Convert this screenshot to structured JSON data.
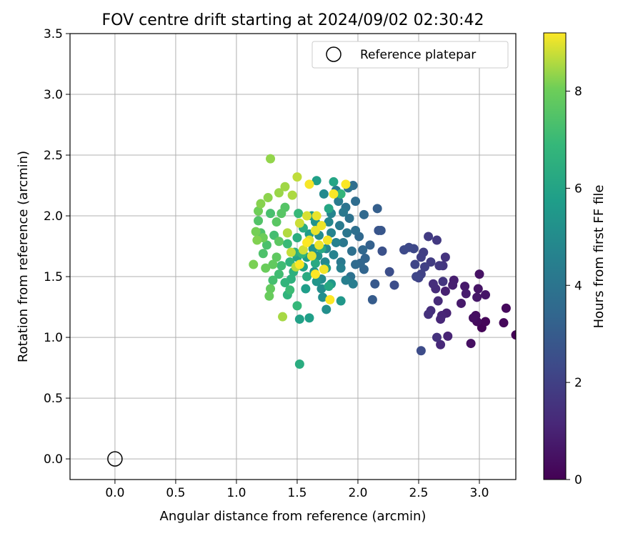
{
  "chart_data": {
    "type": "scatter",
    "title": "FOV centre drift starting at 2024/09/02 02:30:42",
    "xlabel": "Angular distance from reference (arcmin)",
    "ylabel": "Rotation from reference (arcmin)",
    "xlim": [
      -0.37,
      3.3
    ],
    "ylim": [
      -0.17,
      3.5
    ],
    "xticks": [
      0.0,
      0.5,
      1.0,
      1.5,
      2.0,
      2.5,
      3.0
    ],
    "xtick_labels": [
      "0.0",
      "0.5",
      "1.0",
      "1.5",
      "2.0",
      "2.5",
      "3.0"
    ],
    "yticks": [
      0.0,
      0.5,
      1.0,
      1.5,
      2.0,
      2.5,
      3.0,
      3.5
    ],
    "ytick_labels": [
      "0.0",
      "0.5",
      "1.0",
      "1.5",
      "2.0",
      "2.5",
      "3.0",
      "3.5"
    ],
    "grid": true,
    "legend": {
      "position": "upper-right",
      "entries": [
        {
          "label": "Reference platepar",
          "marker": "open-circle"
        }
      ]
    },
    "reference_point": {
      "x": 0.0,
      "y": 0.0
    },
    "colorbar": {
      "label": "Hours from first FF file",
      "colormap": "viridis",
      "range": [
        0,
        9.2
      ],
      "ticks": [
        0,
        2,
        4,
        6,
        8
      ],
      "tick_labels": [
        "0",
        "2",
        "4",
        "6",
        "8"
      ]
    },
    "series": [
      {
        "note_fields": [
          "x",
          "y",
          "hours"
        ],
        "points": [
          [
            3.3,
            1.02,
            0.05
          ],
          [
            3.02,
            1.08,
            0.1
          ],
          [
            3.05,
            1.13,
            0.15
          ],
          [
            3.2,
            1.12,
            0.2
          ],
          [
            3.22,
            1.24,
            0.25
          ],
          [
            2.98,
            1.13,
            0.3
          ],
          [
            2.97,
            1.18,
            0.35
          ],
          [
            2.95,
            1.16,
            0.4
          ],
          [
            2.93,
            0.95,
            0.45
          ],
          [
            3.0,
            1.52,
            0.5
          ],
          [
            2.99,
            1.4,
            0.55
          ],
          [
            3.05,
            1.35,
            0.6
          ],
          [
            2.98,
            1.33,
            0.65
          ],
          [
            2.88,
            1.42,
            0.7
          ],
          [
            2.85,
            1.28,
            0.75
          ],
          [
            2.89,
            1.36,
            0.8
          ],
          [
            2.79,
            1.47,
            0.85
          ],
          [
            2.78,
            1.43,
            0.9
          ],
          [
            2.72,
            1.38,
            0.95
          ],
          [
            2.73,
            1.2,
            1.0
          ],
          [
            2.74,
            1.01,
            1.05
          ],
          [
            2.69,
            1.18,
            1.1
          ],
          [
            2.68,
            1.15,
            1.15
          ],
          [
            2.68,
            0.94,
            1.2
          ],
          [
            2.66,
            1.3,
            1.25
          ],
          [
            2.64,
            1.4,
            1.3
          ],
          [
            2.62,
            1.44,
            1.35
          ],
          [
            2.6,
            1.22,
            1.4
          ],
          [
            2.58,
            1.19,
            1.45
          ],
          [
            2.65,
            1.0,
            1.5
          ],
          [
            2.72,
            1.66,
            1.55
          ],
          [
            2.7,
            1.59,
            1.6
          ],
          [
            2.7,
            1.46,
            1.65
          ],
          [
            2.67,
            1.59,
            1.7
          ],
          [
            2.65,
            1.8,
            1.75
          ],
          [
            2.58,
            1.83,
            1.8
          ],
          [
            2.6,
            1.62,
            1.85
          ],
          [
            2.54,
            1.7,
            1.9
          ],
          [
            2.52,
            1.66,
            1.95
          ],
          [
            2.55,
            1.58,
            2.0
          ],
          [
            2.52,
            1.52,
            2.05
          ],
          [
            2.5,
            1.49,
            2.1
          ],
          [
            2.47,
            1.6,
            2.15
          ],
          [
            2.48,
            1.5,
            2.2
          ],
          [
            2.46,
            1.73,
            2.25
          ],
          [
            2.42,
            1.74,
            2.3
          ],
          [
            2.38,
            1.72,
            2.35
          ],
          [
            2.52,
            0.89,
            2.4
          ],
          [
            2.3,
            1.43,
            2.45
          ],
          [
            2.26,
            1.54,
            2.5
          ],
          [
            2.2,
            1.71,
            2.6
          ],
          [
            2.17,
            1.88,
            2.7
          ],
          [
            2.19,
            1.88,
            2.8
          ],
          [
            2.14,
            1.44,
            2.9
          ],
          [
            2.12,
            1.31,
            3.0
          ],
          [
            2.16,
            2.06,
            3.1
          ],
          [
            2.1,
            1.76,
            3.2
          ],
          [
            2.06,
            1.65,
            3.3
          ],
          [
            2.05,
            1.56,
            3.35
          ],
          [
            2.02,
            1.61,
            3.4
          ],
          [
            2.04,
            1.72,
            3.45
          ],
          [
            2.01,
            1.83,
            3.5
          ],
          [
            2.05,
            2.01,
            3.55
          ],
          [
            1.98,
            1.6,
            3.6
          ],
          [
            1.98,
            2.12,
            3.65
          ],
          [
            1.96,
            2.25,
            3.7
          ],
          [
            1.98,
            1.88,
            3.75
          ],
          [
            1.95,
            1.71,
            3.8
          ],
          [
            1.94,
            1.5,
            3.85
          ],
          [
            1.93,
            1.98,
            3.9
          ],
          [
            1.9,
            2.07,
            3.95
          ],
          [
            1.92,
            2.23,
            4.0
          ],
          [
            1.91,
            1.86,
            4.05
          ],
          [
            1.88,
            1.78,
            4.1
          ],
          [
            1.88,
            2.03,
            4.15
          ],
          [
            1.86,
            1.62,
            4.2
          ],
          [
            1.85,
            1.92,
            4.25
          ],
          [
            1.84,
            2.12,
            4.3
          ],
          [
            1.82,
            2.21,
            4.35
          ],
          [
            1.96,
            1.44,
            4.4
          ],
          [
            1.9,
            1.47,
            4.45
          ],
          [
            1.86,
            1.57,
            4.5
          ],
          [
            1.82,
            1.78,
            4.55
          ],
          [
            1.8,
            1.68,
            4.6
          ],
          [
            1.78,
            1.86,
            4.65
          ],
          [
            1.78,
            2.02,
            4.7
          ],
          [
            1.76,
            1.95,
            4.75
          ],
          [
            1.74,
            1.73,
            4.8
          ],
          [
            1.73,
            1.62,
            4.85
          ],
          [
            1.72,
            2.18,
            4.9
          ],
          [
            1.7,
            1.48,
            4.95
          ],
          [
            1.68,
            1.84,
            5.0
          ],
          [
            1.7,
            1.4,
            5.05
          ],
          [
            1.71,
            1.33,
            5.1
          ],
          [
            1.74,
            1.23,
            5.15
          ],
          [
            1.67,
            1.67,
            5.2
          ],
          [
            1.65,
            1.95,
            5.25
          ],
          [
            1.63,
            1.73,
            5.3
          ],
          [
            1.64,
            1.54,
            5.35
          ],
          [
            1.66,
            1.46,
            5.4
          ],
          [
            1.86,
            1.3,
            5.45
          ],
          [
            1.78,
            1.44,
            5.5
          ],
          [
            1.74,
            1.57,
            5.55
          ],
          [
            1.62,
            2.0,
            5.6
          ],
          [
            1.6,
            1.85,
            5.65
          ],
          [
            1.58,
            1.66,
            5.7
          ],
          [
            1.57,
            1.4,
            5.75
          ],
          [
            1.6,
            1.16,
            5.8
          ],
          [
            1.66,
            2.29,
            5.85
          ],
          [
            1.52,
            1.15,
            5.9
          ],
          [
            1.55,
            1.58,
            5.95
          ],
          [
            1.5,
            1.66,
            6.0
          ],
          [
            1.8,
            2.28,
            6.05
          ],
          [
            1.76,
            2.06,
            6.1
          ],
          [
            1.76,
            1.42,
            6.15
          ],
          [
            1.7,
            1.73,
            6.2
          ],
          [
            1.65,
            1.61,
            6.25
          ],
          [
            1.58,
            1.5,
            6.3
          ],
          [
            1.55,
            1.9,
            6.35
          ],
          [
            1.52,
            0.78,
            6.4
          ],
          [
            1.5,
            1.82,
            6.45
          ],
          [
            1.48,
            1.7,
            6.5
          ],
          [
            1.47,
            1.54,
            6.55
          ],
          [
            1.45,
            1.48,
            6.6
          ],
          [
            1.44,
            1.62,
            6.65
          ],
          [
            1.42,
            1.35,
            6.7
          ],
          [
            1.4,
            1.45,
            6.75
          ],
          [
            1.86,
            2.18,
            6.8
          ],
          [
            1.54,
            1.69,
            6.85
          ],
          [
            1.5,
            1.26,
            6.9
          ],
          [
            1.51,
            2.02,
            6.95
          ],
          [
            1.42,
            1.77,
            7.0
          ],
          [
            1.44,
            1.39,
            7.05
          ],
          [
            1.37,
            1.59,
            7.1
          ],
          [
            1.35,
            1.52,
            7.15
          ],
          [
            1.31,
            1.84,
            7.2
          ],
          [
            1.3,
            1.47,
            7.25
          ],
          [
            1.28,
            2.02,
            7.3
          ],
          [
            1.25,
            1.76,
            7.35
          ],
          [
            1.22,
            1.69,
            7.4
          ],
          [
            1.2,
            1.86,
            7.45
          ],
          [
            1.18,
            1.96,
            7.5
          ],
          [
            1.4,
            2.07,
            7.55
          ],
          [
            1.37,
            2.02,
            7.6
          ],
          [
            1.33,
            1.95,
            7.65
          ],
          [
            1.35,
            1.79,
            7.7
          ],
          [
            1.33,
            1.66,
            7.75
          ],
          [
            1.3,
            1.6,
            7.8
          ],
          [
            1.28,
            1.4,
            7.85
          ],
          [
            1.27,
            1.34,
            7.9
          ],
          [
            1.24,
            1.57,
            7.95
          ],
          [
            1.22,
            1.82,
            8.0
          ],
          [
            1.18,
            2.04,
            8.05
          ],
          [
            1.16,
            1.87,
            8.1
          ],
          [
            1.14,
            1.6,
            8.15
          ],
          [
            1.17,
            1.8,
            8.2
          ],
          [
            1.2,
            2.1,
            8.25
          ],
          [
            1.26,
            2.15,
            8.3
          ],
          [
            1.28,
            2.47,
            8.35
          ],
          [
            1.35,
            2.19,
            8.4
          ],
          [
            1.4,
            2.24,
            8.45
          ],
          [
            1.38,
            1.17,
            8.5
          ],
          [
            1.46,
            2.17,
            8.55
          ],
          [
            1.42,
            1.86,
            8.6
          ],
          [
            1.49,
            1.58,
            8.65
          ],
          [
            1.5,
            2.32,
            8.7
          ],
          [
            1.45,
            1.7,
            8.75
          ],
          [
            1.52,
            1.94,
            8.8
          ],
          [
            1.55,
            1.72,
            8.85
          ],
          [
            1.58,
            2.0,
            8.9
          ],
          [
            1.6,
            1.8,
            8.95
          ],
          [
            1.62,
            1.67,
            9.0
          ],
          [
            1.65,
            1.88,
            9.02
          ],
          [
            1.66,
            2.0,
            9.04
          ],
          [
            1.68,
            1.76,
            9.06
          ],
          [
            1.7,
            1.92,
            9.08
          ],
          [
            1.72,
            1.56,
            9.1
          ],
          [
            1.75,
            1.8,
            9.12
          ],
          [
            1.6,
            2.26,
            9.14
          ],
          [
            1.8,
            2.18,
            9.16
          ],
          [
            1.9,
            2.26,
            9.18
          ],
          [
            1.77,
            1.31,
            9.2
          ],
          [
            1.65,
            1.52,
            9.2
          ],
          [
            1.58,
            1.78,
            9.19
          ],
          [
            1.52,
            1.6,
            9.18
          ]
        ]
      }
    ]
  }
}
